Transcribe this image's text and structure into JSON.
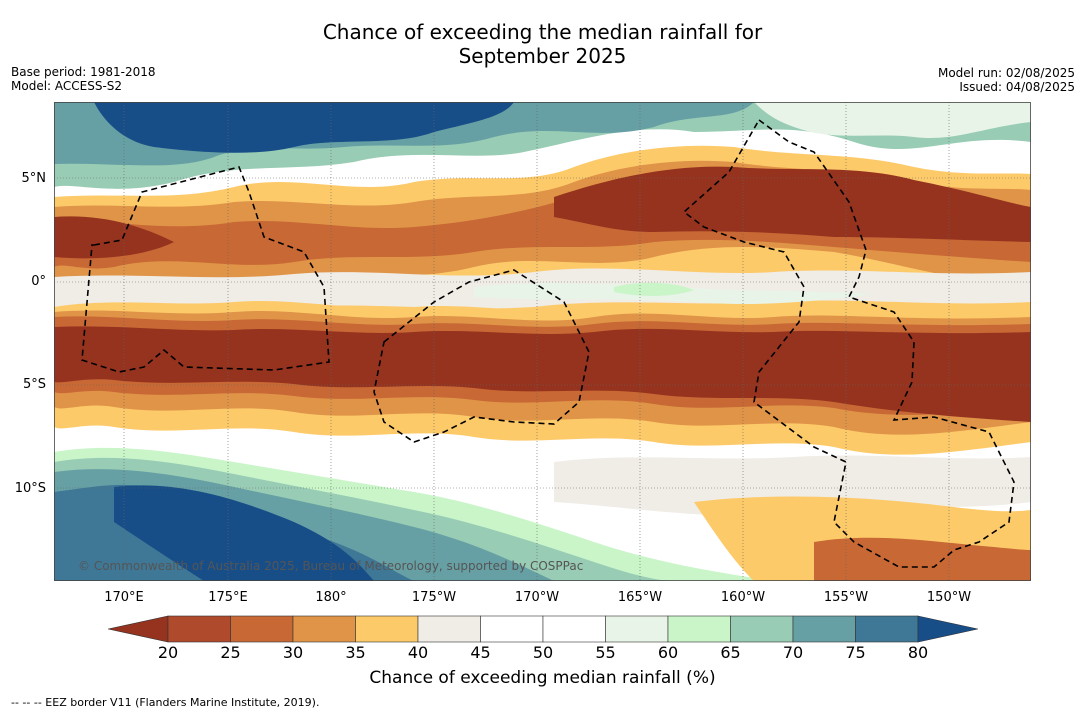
{
  "title_line1": "Chance of exceeding the median rainfall for",
  "title_line2": "September 2025",
  "meta_left": {
    "base_period": "Base period: 1981-2018",
    "model": "Model: ACCESS-S2"
  },
  "meta_right": {
    "model_run": "Model run: 02/08/2025",
    "issued": "Issued: 04/08/2025"
  },
  "map": {
    "lat_labels": [
      "5°N",
      "0°",
      "5°S",
      "10°S"
    ],
    "lon_labels": [
      "170°E",
      "175°E",
      "180°",
      "175°W",
      "170°W",
      "165°W",
      "160°W",
      "155°W",
      "150°W"
    ],
    "credit": "© Commonwealth of Australia 2025, Bureau of Meteorology, supported by COSPPac"
  },
  "colorbar": {
    "ticks": [
      "20",
      "25",
      "30",
      "35",
      "40",
      "45",
      "50",
      "55",
      "60",
      "65",
      "70",
      "75",
      "80"
    ],
    "colors": [
      "#95331f",
      "#b04a2c",
      "#c86835",
      "#e09448",
      "#fdca6a",
      "#f0ece6",
      "#ffffff",
      "#ffffff",
      "#e8f4e7",
      "#c9f5c9",
      "#98ccb4",
      "#67a0a4",
      "#3f7896",
      "#174e88"
    ],
    "label": "Chance of exceeding median rainfall (%)"
  },
  "footer": "--  --  -- EEZ border V11 (Flanders Marine Institute, 2019)."
}
